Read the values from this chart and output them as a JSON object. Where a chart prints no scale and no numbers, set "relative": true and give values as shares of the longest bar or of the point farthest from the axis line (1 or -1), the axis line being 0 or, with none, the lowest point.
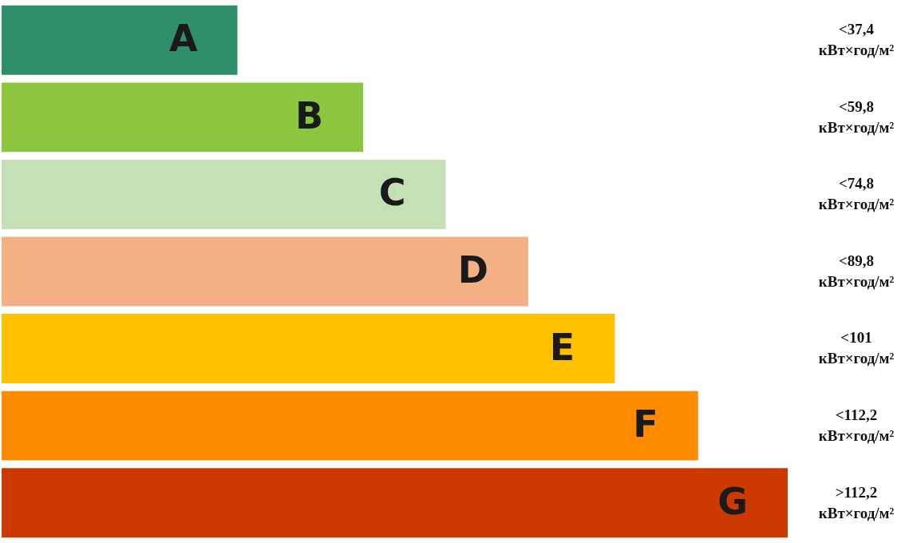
{
  "chart_data": {
    "type": "bar",
    "orientation": "horizontal",
    "relative": true,
    "categories": [
      "A",
      "B",
      "C",
      "D",
      "E",
      "F",
      "G"
    ],
    "values": [
      0.3,
      0.46,
      0.565,
      0.67,
      0.78,
      0.886,
      1
    ],
    "colors": [
      "#2f8f6b",
      "#8cc63f",
      "#c5e0b4",
      "#f2b084",
      "#ffc000",
      "#ff8c00",
      "#cc3a00"
    ],
    "annotations": [
      "<37,4 кВт×год/м²",
      "<59,8 кВт×год/м²",
      "<74,8 кВт×год/м²",
      "<89,8 кВт×год/м²",
      "<101 кВт×год/м²",
      "<112,2 кВт×год/м²",
      ">112,2 кВт×год/м²"
    ]
  }
}
